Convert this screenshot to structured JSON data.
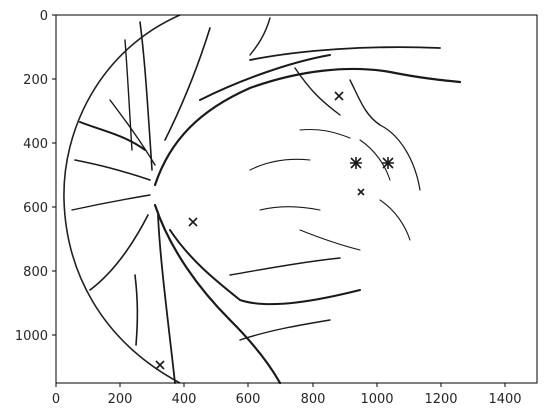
{
  "figure": {
    "x_ticks": [
      "0",
      "200",
      "400",
      "600",
      "800",
      "1000",
      "1200",
      "1400"
    ],
    "y_ticks": [
      "0",
      "200",
      "400",
      "600",
      "800",
      "1000"
    ],
    "image_content": "binary retinal blood vessel segmentation mask"
  }
}
